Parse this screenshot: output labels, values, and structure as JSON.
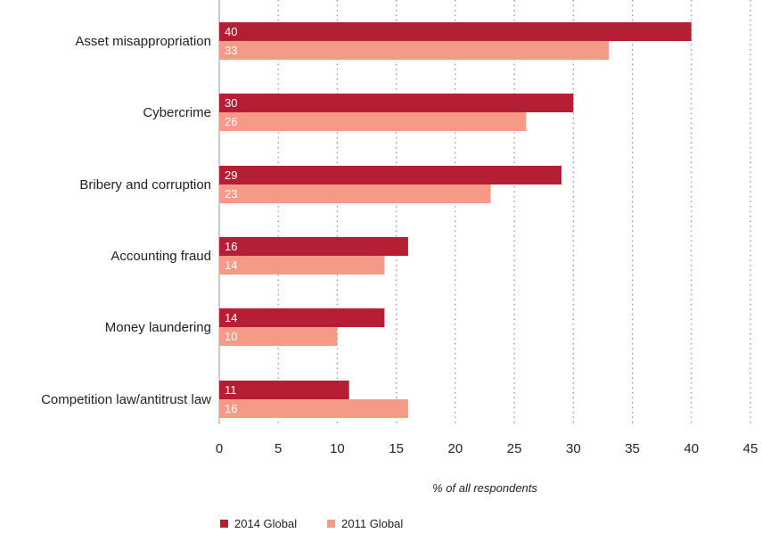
{
  "chart_data": {
    "type": "bar",
    "orientation": "horizontal",
    "categories": [
      "Asset misappropriation",
      "Cybercrime",
      "Bribery and corruption",
      "Accounting fraud",
      "Money laundering",
      "Competition law/antitrust law"
    ],
    "series": [
      {
        "name": "2014 Global",
        "color": "#b41f35",
        "values": [
          40,
          30,
          29,
          16,
          14,
          11
        ]
      },
      {
        "name": "2011 Global",
        "color": "#f59a86",
        "values": [
          33,
          26,
          23,
          14,
          10,
          16
        ]
      }
    ],
    "xlabel": "% of all respondents",
    "xlim": [
      0,
      45
    ],
    "xticks": [
      "0",
      "5",
      "10",
      "15",
      "20",
      "25",
      "30",
      "35",
      "40",
      "45"
    ],
    "grid": "vertical dotted",
    "legend_position": "bottom-left"
  }
}
